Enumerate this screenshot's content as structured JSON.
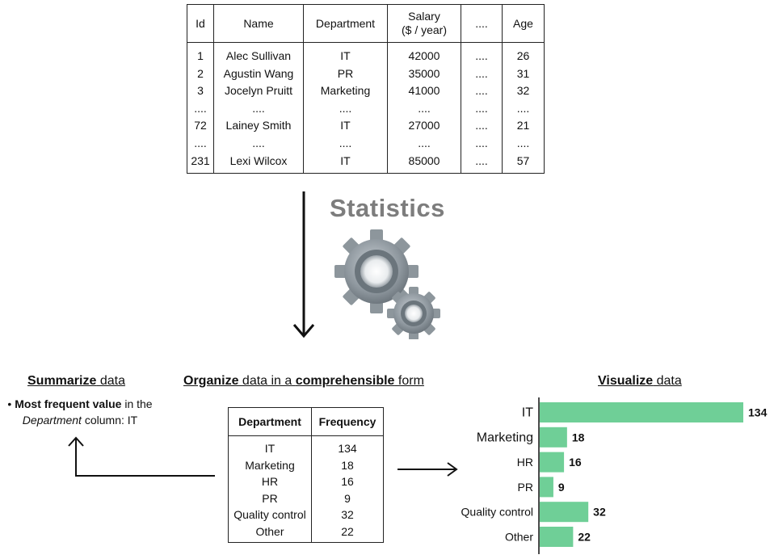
{
  "employee_table": {
    "headers": [
      "Id",
      "Name",
      "Department",
      "Salary\n($ / year)",
      "....",
      "Age"
    ],
    "rows": [
      [
        "1",
        "Alec Sullivan",
        "IT",
        "42000",
        "....",
        "26"
      ],
      [
        "2",
        "Agustin Wang",
        "PR",
        "35000",
        "....",
        "31"
      ],
      [
        "3",
        "Jocelyn Pruitt",
        "Marketing",
        "41000",
        "....",
        "32"
      ],
      [
        "....",
        "....",
        "....",
        "....",
        "....",
        "...."
      ],
      [
        "72",
        "Lainey Smith",
        "IT",
        "27000",
        "....",
        "21"
      ],
      [
        "....",
        "....",
        "....",
        "....",
        "....",
        "...."
      ],
      [
        "231",
        "Lexi Wilcox",
        "IT",
        "85000",
        "....",
        "57"
      ]
    ]
  },
  "statistics": {
    "title": "Statistics",
    "icon": "gears-icon"
  },
  "summarize": {
    "heading_bold": "Summarize",
    "heading_rest": " data",
    "bullet": "•",
    "bold_text": "Most frequent value",
    "text_1": " in the ",
    "italic_text": "Department",
    "text_2": " column: IT"
  },
  "organize": {
    "heading_bold_1": "Organize",
    "heading_mid": " data in a ",
    "heading_bold_2": "comprehensible",
    "heading_end": " form",
    "table_headers": [
      "Department",
      "Frequency"
    ],
    "rows": [
      [
        "IT",
        "134"
      ],
      [
        "Marketing",
        "18"
      ],
      [
        "HR",
        "16"
      ],
      [
        "PR",
        "9"
      ],
      [
        "Quality control",
        "32"
      ],
      [
        "Other",
        "22"
      ]
    ]
  },
  "visualize": {
    "heading_bold": "Visualize",
    "heading_rest": " data"
  },
  "chart_data": {
    "type": "bar",
    "orientation": "horizontal",
    "categories": [
      "IT",
      "Marketing",
      "HR",
      "PR",
      "Quality control",
      "Other"
    ],
    "values": [
      134,
      18,
      16,
      9,
      32,
      22
    ],
    "bar_color": "#6fcf97",
    "data_labels": true,
    "xlim": [
      0,
      134
    ]
  },
  "colors": {
    "statistics_title": "#7d7d7d",
    "bar": "#6fcf97",
    "line": "#111111"
  }
}
